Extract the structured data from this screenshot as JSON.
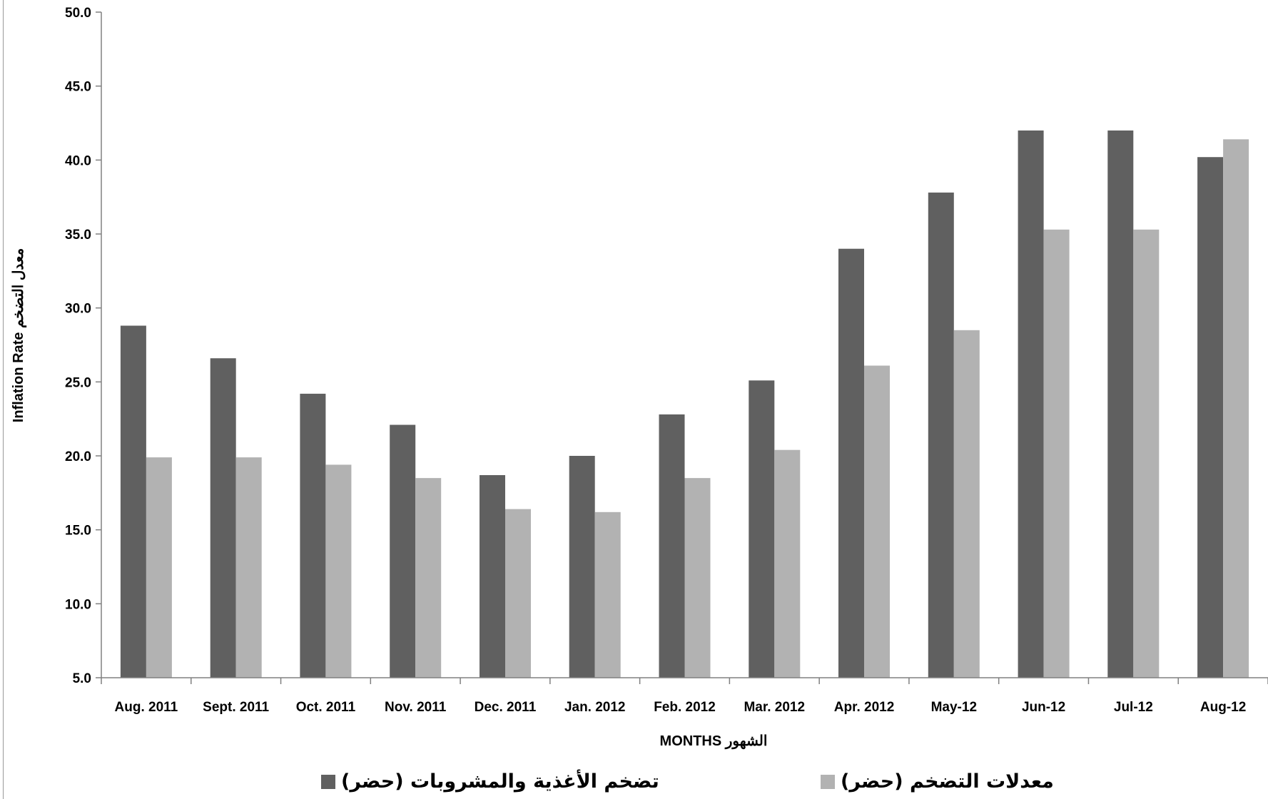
{
  "chart_data": {
    "type": "bar",
    "categories": [
      "Aug. 2011",
      "Sept. 2011",
      "Oct. 2011",
      "Nov. 2011",
      "Dec. 2011",
      "Jan. 2012",
      "Feb. 2012",
      "Mar. 2012",
      "Apr. 2012",
      "May-12",
      "Jun-12",
      "Jul-12",
      "Aug-12"
    ],
    "series": [
      {
        "name": "تضخم الأغذية والمشروبات (حضر)",
        "color": "#606060",
        "values": [
          28.8,
          26.6,
          24.2,
          22.1,
          18.7,
          20.0,
          22.8,
          25.1,
          34.0,
          37.8,
          42.0,
          42.0,
          40.2
        ]
      },
      {
        "name": "معدلات التضخم (حضر)",
        "color": "#b2b2b2",
        "values": [
          19.9,
          19.9,
          19.4,
          18.5,
          16.4,
          16.2,
          18.5,
          20.4,
          26.1,
          28.5,
          35.3,
          35.3,
          41.4
        ]
      }
    ],
    "ylim": [
      5.0,
      50.0
    ],
    "yticks": [
      "5.0",
      "10.0",
      "15.0",
      "20.0",
      "25.0",
      "30.0",
      "35.0",
      "40.0",
      "45.0",
      "50.0"
    ],
    "xlabel": "MONTHS   الشهور",
    "ylabel": "Inflation Rate   معدل التضخم",
    "grid": false,
    "legend_position": "bottom"
  }
}
